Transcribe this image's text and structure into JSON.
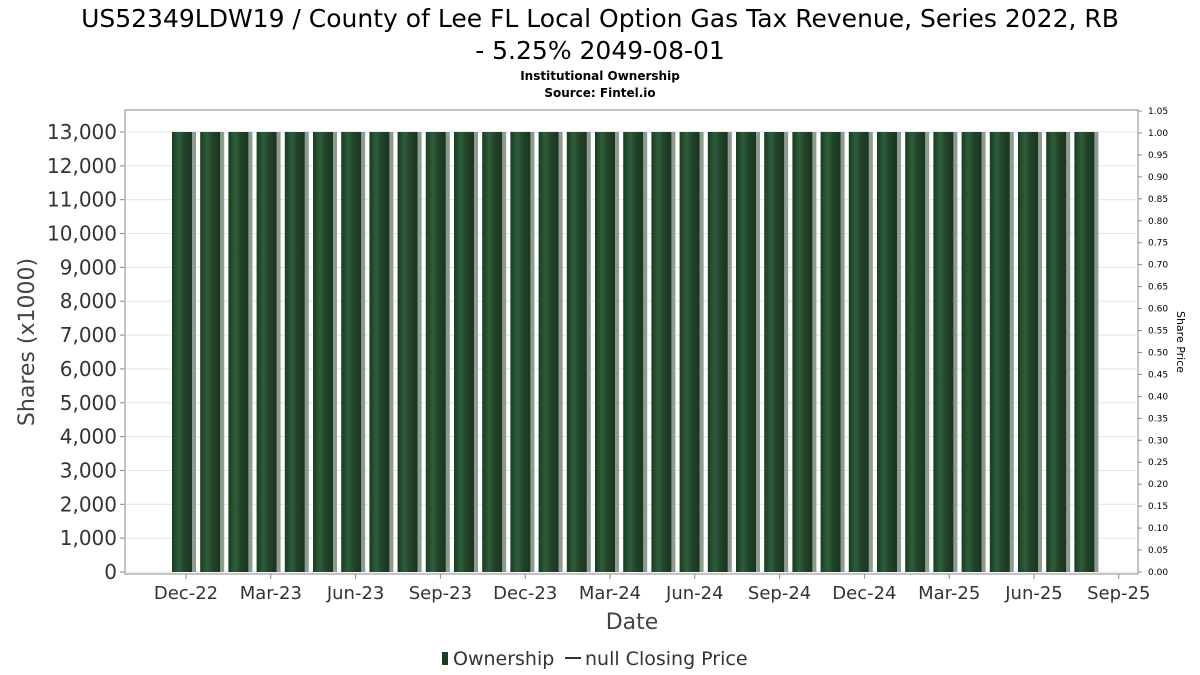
{
  "header": {
    "title_line1": "US52349LDW19 / County of Lee FL Local Option Gas Tax Revenue, Series 2022, RB",
    "title_line2": "- 5.25% 2049-08-01",
    "subtitle": "Institutional Ownership",
    "source": "Source: Fintel.io"
  },
  "legend": {
    "ownership_label": "Ownership",
    "price_label": "null Closing Price"
  },
  "colors": {
    "bar_dark": "#1f3d26",
    "bar_mid": "#2f5e3a",
    "bar_light": "#4a7a55",
    "bar_gray": "#8a9a8c",
    "grid": "#e3e3e3",
    "axis": "#888888"
  },
  "chart_data": {
    "type": "bar",
    "title": "US52349LDW19 / County of Lee FL Local Option Gas Tax Revenue, Series 2022, RB - 5.25% 2049-08-01",
    "subtitle": "Institutional Ownership",
    "xlabel": "Date",
    "ylabel": "Shares (x1000)",
    "y2label": "Share Price",
    "ylim": [
      0,
      13000
    ],
    "y2lim": [
      0,
      1.05
    ],
    "yticks": [
      "0",
      "1,000",
      "2,000",
      "3,000",
      "4,000",
      "5,000",
      "6,000",
      "7,000",
      "8,000",
      "9,000",
      "10,000",
      "11,000",
      "12,000",
      "13,000"
    ],
    "y2ticks": [
      "0.00",
      "0.05",
      "0.10",
      "0.15",
      "0.20",
      "0.25",
      "0.30",
      "0.35",
      "0.40",
      "0.45",
      "0.50",
      "0.55",
      "0.60",
      "0.65",
      "0.70",
      "0.75",
      "0.80",
      "0.85",
      "0.90",
      "0.95",
      "1.00",
      "1.05"
    ],
    "xticks": [
      "Dec-22",
      "Mar-23",
      "Jun-23",
      "Sep-23",
      "Dec-23",
      "Mar-24",
      "Jun-24",
      "Sep-24",
      "Dec-24",
      "Mar-25",
      "Jun-25",
      "Sep-25"
    ],
    "bars_count": 33,
    "series": [
      {
        "name": "Ownership",
        "values": [
          13000,
          13000,
          13000,
          13000,
          13000,
          13000,
          13000,
          13000,
          13000,
          13000,
          13000,
          13000,
          13000,
          13000,
          13000,
          13000,
          13000,
          13000,
          13000,
          13000,
          13000,
          13000,
          13000,
          13000,
          13000,
          13000,
          13000,
          13000,
          13000,
          13000,
          13000,
          13000,
          13000
        ]
      },
      {
        "name": "null Closing Price",
        "values": []
      }
    ],
    "grid": true,
    "legend_position": "bottom"
  }
}
